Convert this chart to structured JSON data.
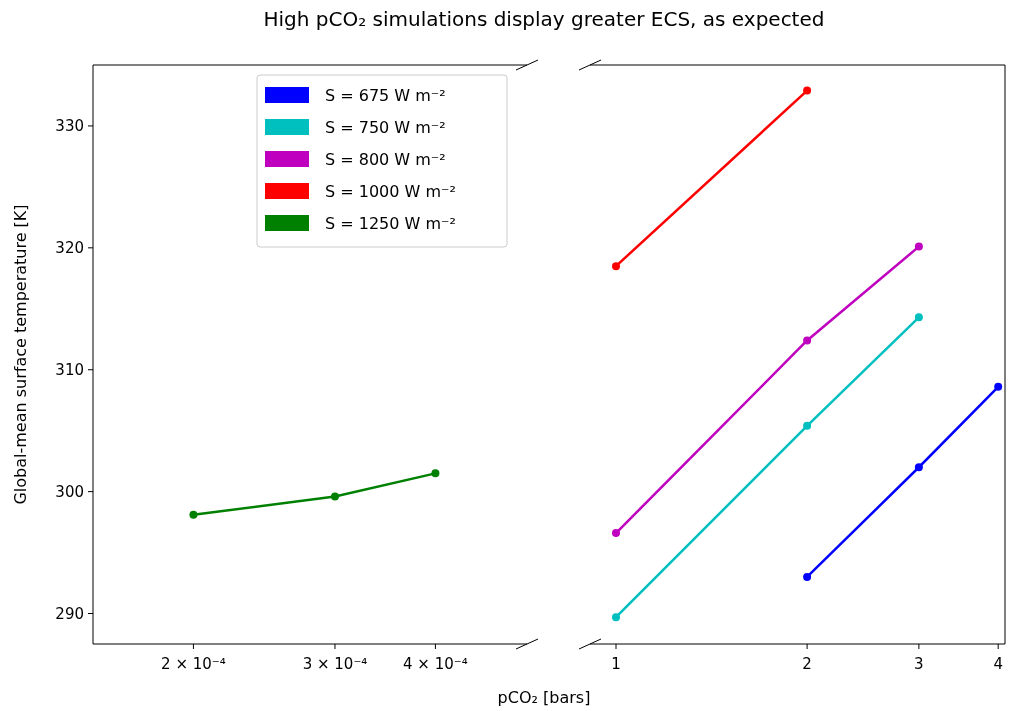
{
  "chart_data": [
    {
      "type": "line",
      "title": "High pCO₂ simulations display greater ECS, as expected",
      "xlabel": "pCO₂ [bars]",
      "ylabel": "Global-mean surface temperature [K]",
      "log": "x",
      "xlim": [
        0.00015,
        0.00052
      ],
      "xticks": [
        {
          "value": 0.0002,
          "label": "2 × 10⁻⁴"
        },
        {
          "value": 0.0003,
          "label": "3 × 10⁻⁴"
        },
        {
          "value": 0.0004,
          "label": "4 × 10⁻⁴"
        }
      ],
      "ylim": [
        287.5,
        335
      ],
      "yticks": [
        290,
        300,
        310,
        320,
        330
      ],
      "marker": "circle",
      "legend": "top right",
      "series": [
        {
          "name": "S = 1250 W m⁻²",
          "color": "#008000",
          "x": [
            0.0002,
            0.0003,
            0.0004
          ],
          "values": [
            298.1,
            299.6,
            301.5
          ]
        }
      ]
    },
    {
      "type": "line",
      "log": "x",
      "xlim": [
        0.91,
        4.1
      ],
      "xticks": [
        1,
        2,
        3,
        4
      ],
      "ylim": [
        287.5,
        335
      ],
      "tick_labels": "x",
      "legend": "left",
      "marker": "circle",
      "series": [
        {
          "name": "S = 675 W m⁻²",
          "color": "#0000ff",
          "x": [
            2,
            3,
            4
          ],
          "values": [
            293.0,
            302.0,
            308.6
          ]
        },
        {
          "name": "S = 750 W m⁻²",
          "color": "#00bfbf",
          "x": [
            1,
            2,
            3
          ],
          "values": [
            289.7,
            305.4,
            314.3
          ]
        },
        {
          "name": "S = 800 W m⁻²",
          "color": "#bf00bf",
          "x": [
            1,
            2,
            3
          ],
          "values": [
            296.6,
            312.4,
            320.1
          ]
        },
        {
          "name": "S = 1000 W m⁻²",
          "color": "#ff0000",
          "x": [
            1,
            2
          ],
          "values": [
            318.5,
            332.9
          ]
        }
      ]
    }
  ]
}
